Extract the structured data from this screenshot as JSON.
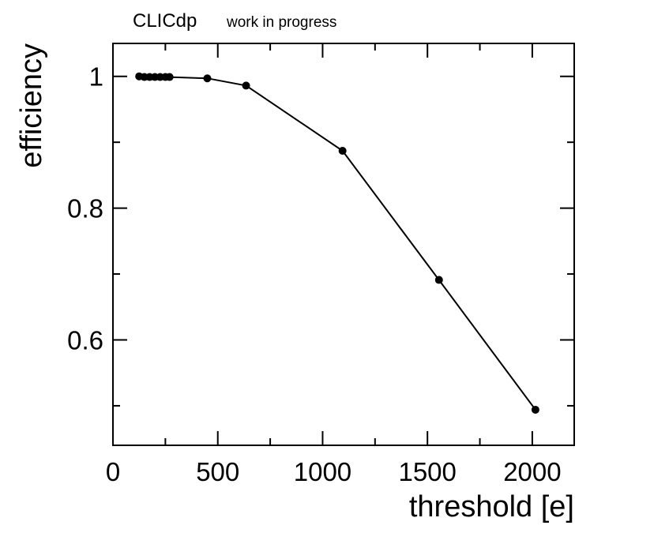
{
  "chart_data": {
    "type": "line",
    "title": "CLICdp",
    "subtitle": "work in progress",
    "xlabel": "threshold [e]",
    "ylabel": "efficiency",
    "xlim": [
      0,
      2200
    ],
    "ylim": [
      0.44,
      1.05
    ],
    "xticks": [
      0,
      500,
      1000,
      1500,
      2000
    ],
    "xtick_labels": [
      "0",
      "500",
      "1000",
      "1500",
      "2000"
    ],
    "yticks": [
      0.6,
      0.8,
      1.0
    ],
    "ytick_labels": [
      "0.6",
      "0.8",
      "1"
    ],
    "grid": false,
    "legend": "none",
    "marker": "filled-circle",
    "line_color": "#000000",
    "series": [
      {
        "x": [
          125,
          150,
          175,
          200,
          225,
          250,
          270,
          450,
          635,
          1095,
          1555,
          2015
        ],
        "y": [
          1.0,
          0.999,
          0.999,
          0.999,
          0.999,
          0.999,
          0.999,
          0.997,
          0.986,
          0.887,
          0.691,
          0.494
        ]
      }
    ]
  }
}
